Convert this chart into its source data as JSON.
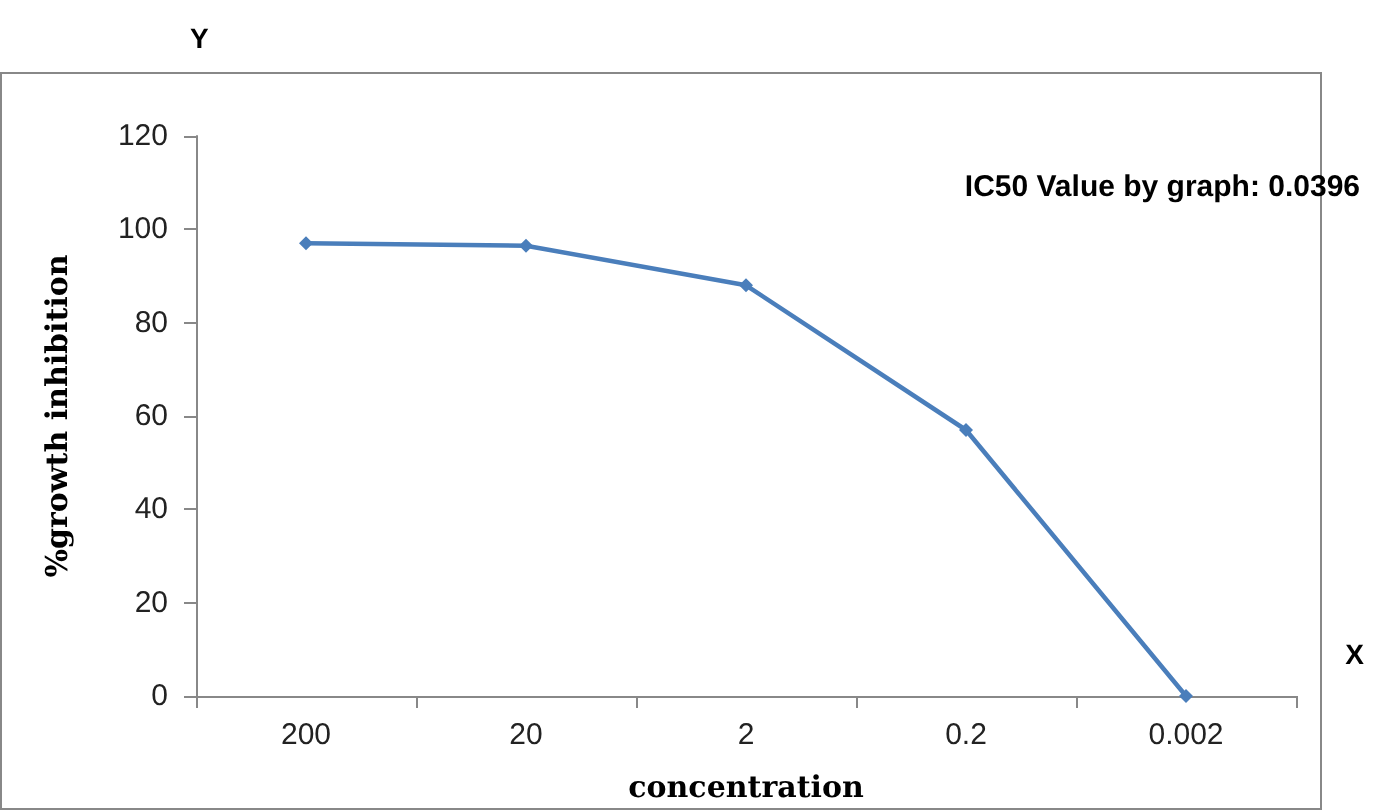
{
  "chart_data": {
    "type": "line",
    "xlabel": "concentration",
    "ylabel": "%growth inhibition",
    "annotations": [
      "IC50 Value by graph: 0.0396",
      "Y",
      "X"
    ],
    "categories": [
      "200",
      "20",
      "2",
      "0.2",
      "0.002"
    ],
    "series": [
      {
        "color": "#4a7ebb",
        "values": [
          97,
          96.5,
          88,
          57,
          0
        ]
      }
    ],
    "ylim": [
      0,
      120
    ],
    "yticks": [
      0,
      20,
      40,
      60,
      80,
      100,
      120
    ],
    "grid": false,
    "marker": "diamond",
    "line_style": "solid"
  }
}
